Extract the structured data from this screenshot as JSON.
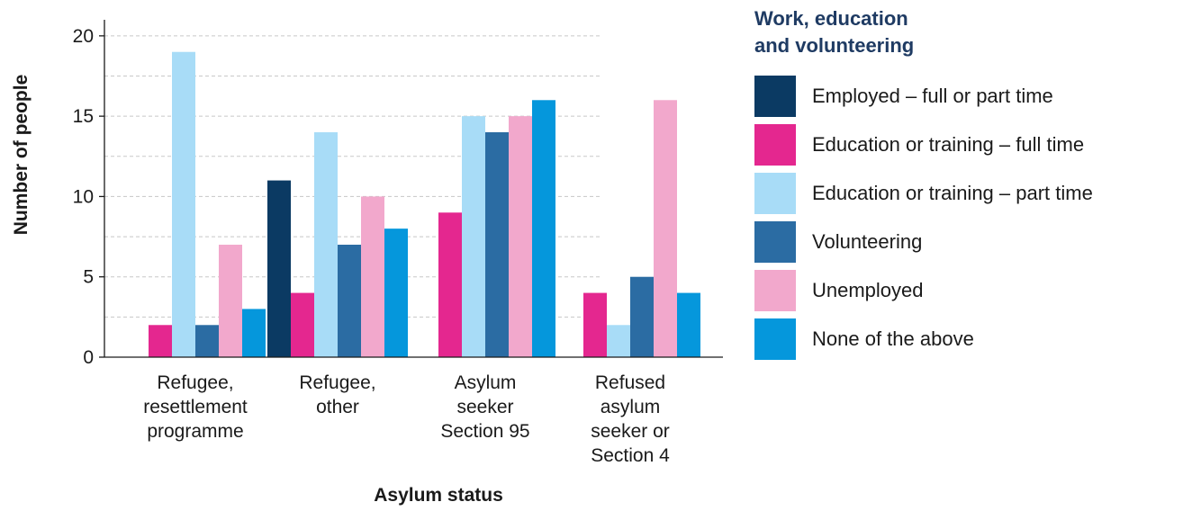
{
  "chart_data": {
    "type": "bar",
    "xlabel": "Asylum status",
    "ylabel": "Number of people",
    "ylim": [
      0,
      21
    ],
    "yticks": [
      0,
      5,
      10,
      15,
      20
    ],
    "grid": "horizontal dashed",
    "legend_position": "right",
    "legend_title": [
      "Work, education",
      "and volunteering"
    ],
    "categories": [
      [
        "Refugee,",
        "resettlement",
        "programme"
      ],
      [
        "Refugee,",
        "other"
      ],
      [
        "Asylum",
        "seeker",
        "Section 95"
      ],
      [
        "Refused",
        "asylum",
        "seeker or",
        "Section 4"
      ]
    ],
    "series": [
      {
        "name": "Employed – full or part time",
        "color": "#0b3a63",
        "values": [
          0,
          11,
          0,
          0
        ]
      },
      {
        "name": "Education or training – full time",
        "color": "#e4278f",
        "values": [
          2,
          4,
          9,
          4
        ]
      },
      {
        "name": "Education or training – part time",
        "color": "#a8dcf7",
        "values": [
          19,
          14,
          15,
          2
        ]
      },
      {
        "name": "Volunteering",
        "color": "#2b6ca3",
        "values": [
          2,
          7,
          14,
          5
        ]
      },
      {
        "name": "Unemployed",
        "color": "#f2a8cc",
        "values": [
          7,
          10,
          15,
          16
        ]
      },
      {
        "name": "None of the above",
        "color": "#0597dc",
        "values": [
          3,
          8,
          16,
          4
        ]
      }
    ]
  }
}
